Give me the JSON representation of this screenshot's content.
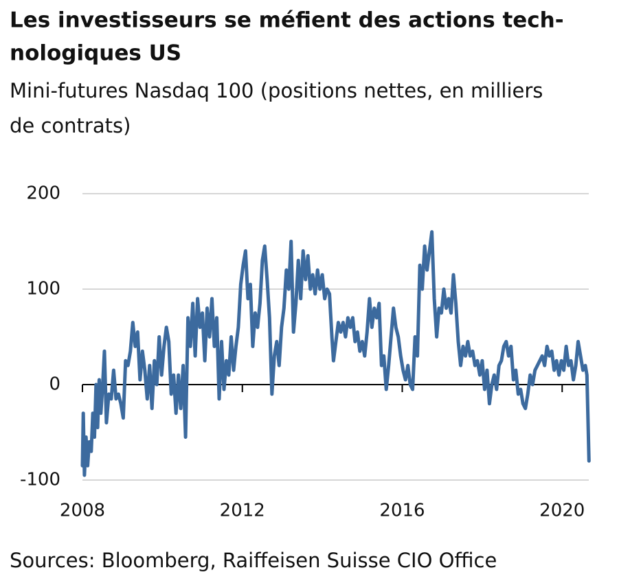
{
  "chart_data": {
    "type": "line",
    "title_lines": [
      "Les investisseurs se méfient des actions tech-",
      "nologiques US"
    ],
    "subtitle_lines": [
      "Mini-futures Nasdaq 100 (positions nettes, en milliers",
      "de contrats)"
    ],
    "source": "Sources: Bloomberg, Raiffeisen Suisse CIO Office",
    "x": [
      2008.0,
      2008.02,
      2008.05,
      2008.09,
      2008.13,
      2008.17,
      2008.22,
      2008.26,
      2008.3,
      2008.34,
      2008.38,
      2008.42,
      2008.46,
      2008.5,
      2008.55,
      2008.6,
      2008.66,
      2008.72,
      2008.78,
      2008.84,
      2008.9,
      2008.96,
      2009.02,
      2009.08,
      2009.14,
      2009.2,
      2009.26,
      2009.32,
      2009.38,
      2009.44,
      2009.5,
      2009.56,
      2009.62,
      2009.68,
      2009.74,
      2009.8,
      2009.86,
      2009.92,
      2009.98,
      2010.04,
      2010.1,
      2010.16,
      2010.22,
      2010.28,
      2010.34,
      2010.4,
      2010.46,
      2010.52,
      2010.58,
      2010.64,
      2010.7,
      2010.76,
      2010.82,
      2010.88,
      2010.94,
      2011.0,
      2011.06,
      2011.12,
      2011.18,
      2011.24,
      2011.3,
      2011.36,
      2011.42,
      2011.48,
      2011.54,
      2011.6,
      2011.66,
      2011.72,
      2011.78,
      2011.84,
      2011.9,
      2011.96,
      2012.02,
      2012.08,
      2012.14,
      2012.2,
      2012.26,
      2012.32,
      2012.38,
      2012.44,
      2012.5,
      2012.56,
      2012.62,
      2012.68,
      2012.74,
      2012.8,
      2012.86,
      2012.92,
      2012.98,
      2013.04,
      2013.1,
      2013.16,
      2013.22,
      2013.28,
      2013.34,
      2013.4,
      2013.46,
      2013.52,
      2013.58,
      2013.64,
      2013.7,
      2013.76,
      2013.82,
      2013.88,
      2013.94,
      2014.0,
      2014.06,
      2014.12,
      2014.18,
      2014.24,
      2014.28,
      2014.34,
      2014.4,
      2014.46,
      2014.52,
      2014.58,
      2014.64,
      2014.7,
      2014.76,
      2014.82,
      2014.88,
      2014.94,
      2015.0,
      2015.06,
      2015.12,
      2015.18,
      2015.24,
      2015.3,
      2015.36,
      2015.42,
      2015.48,
      2015.54,
      2015.6,
      2015.66,
      2015.72,
      2015.78,
      2015.84,
      2015.9,
      2015.96,
      2016.02,
      2016.08,
      2016.14,
      2016.2,
      2016.26,
      2016.32,
      2016.38,
      2016.44,
      2016.5,
      2016.56,
      2016.62,
      2016.68,
      2016.74,
      2016.8,
      2016.86,
      2016.92,
      2016.98,
      2017.04,
      2017.1,
      2017.16,
      2017.22,
      2017.28,
      2017.34,
      2017.4,
      2017.46,
      2017.52,
      2017.58,
      2017.64,
      2017.7,
      2017.76,
      2017.82,
      2017.88,
      2017.94,
      2018.0,
      2018.06,
      2018.12,
      2018.18,
      2018.24,
      2018.3,
      2018.36,
      2018.42,
      2018.48,
      2018.54,
      2018.6,
      2018.66,
      2018.72,
      2018.78,
      2018.84,
      2018.9,
      2018.96,
      2019.02,
      2019.08,
      2019.14,
      2019.2,
      2019.26,
      2019.32,
      2019.38,
      2019.44,
      2019.5,
      2019.56,
      2019.62,
      2019.68,
      2019.74,
      2019.8,
      2019.86,
      2019.92,
      2019.98,
      2020.04,
      2020.1,
      2020.16,
      2020.22,
      2020.28,
      2020.34,
      2020.4,
      2020.46,
      2020.52,
      2020.58,
      2020.62,
      2020.67
    ],
    "series": [
      {
        "color": "#3c6a9e",
        "values": [
          -85,
          -30,
          -95,
          -55,
          -85,
          -60,
          -70,
          -30,
          -55,
          0,
          -45,
          5,
          -30,
          -5,
          35,
          -40,
          -10,
          -15,
          15,
          -15,
          -10,
          -20,
          -35,
          25,
          20,
          35,
          65,
          40,
          55,
          5,
          35,
          15,
          -15,
          20,
          -25,
          25,
          0,
          50,
          10,
          40,
          60,
          45,
          -10,
          10,
          -30,
          10,
          -25,
          20,
          -55,
          70,
          40,
          85,
          30,
          90,
          60,
          75,
          25,
          80,
          50,
          90,
          40,
          70,
          -15,
          45,
          -5,
          25,
          10,
          50,
          15,
          40,
          60,
          105,
          125,
          140,
          90,
          105,
          40,
          75,
          60,
          85,
          130,
          145,
          110,
          70,
          -10,
          30,
          45,
          20,
          60,
          80,
          120,
          100,
          150,
          55,
          85,
          130,
          90,
          140,
          110,
          135,
          100,
          115,
          95,
          120,
          100,
          115,
          90,
          100,
          95,
          50,
          25,
          45,
          65,
          55,
          65,
          50,
          70,
          60,
          70,
          45,
          55,
          35,
          45,
          30,
          55,
          90,
          60,
          80,
          70,
          85,
          20,
          30,
          -5,
          20,
          50,
          80,
          60,
          50,
          30,
          15,
          5,
          20,
          0,
          -5,
          50,
          30,
          125,
          100,
          145,
          120,
          140,
          160,
          90,
          50,
          80,
          75,
          100,
          80,
          90,
          75,
          115,
          85,
          45,
          20,
          40,
          30,
          45,
          30,
          35,
          20,
          25,
          10,
          25,
          -5,
          15,
          -20,
          0,
          10,
          -5,
          20,
          25,
          40,
          45,
          30,
          40,
          5,
          15,
          -10,
          -5,
          -20,
          -25,
          -10,
          10,
          0,
          15,
          20,
          25,
          30,
          20,
          40,
          30,
          35,
          15,
          25,
          10,
          25,
          15,
          40,
          20,
          25,
          5,
          20,
          45,
          30,
          15,
          20,
          10,
          -80
        ]
      }
    ],
    "xlim": [
      2008,
      2020.7
    ],
    "xticks": [
      2008,
      2012,
      2016,
      2020
    ],
    "ylim": [
      -100,
      200
    ],
    "yticks": [
      -100,
      0,
      100,
      200
    ],
    "grid": true
  }
}
